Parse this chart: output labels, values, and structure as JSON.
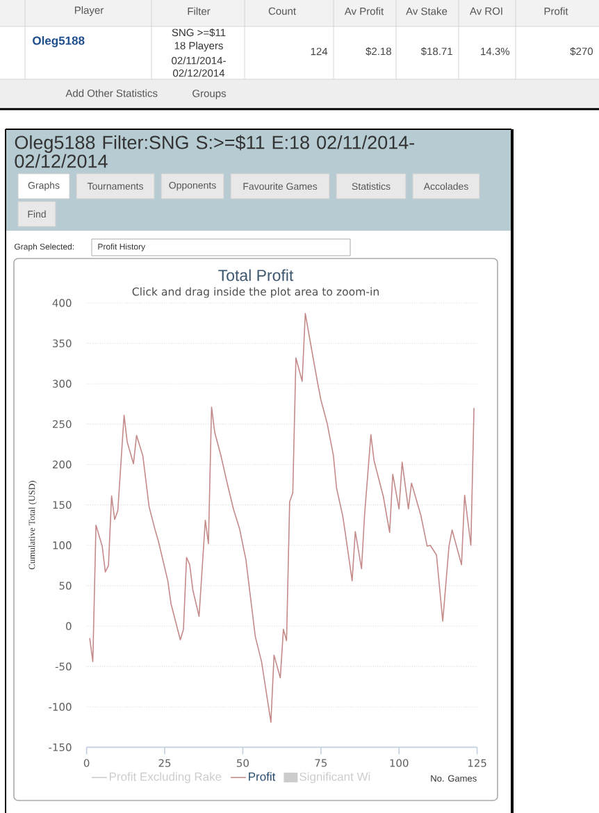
{
  "chart_data": {
    "type": "line",
    "title": "Total Profit",
    "subtitle": "Click and drag inside the plot area to zoom-in",
    "xlabel": "No. Games",
    "ylabel": "Cumulative Total (USD)",
    "xlim": [
      0,
      125
    ],
    "xticks": [
      0,
      25,
      50,
      75,
      100,
      125
    ],
    "ylim": [
      -150,
      400
    ],
    "yticks": [
      -150,
      -100,
      -50,
      0,
      50,
      100,
      150,
      200,
      250,
      300,
      350,
      400
    ],
    "grid": "y",
    "legend": "bottom",
    "series": [
      {
        "name": "Profit Excluding Rake",
        "color": "#cccccc"
      },
      {
        "name": "Profit",
        "color": "#c48a8a",
        "x": [
          1,
          2,
          3,
          5,
          6,
          7,
          8,
          9,
          10,
          12,
          13,
          15,
          16,
          18,
          20,
          22,
          23,
          26,
          27,
          30,
          31,
          32,
          33,
          34,
          36,
          38,
          39,
          40,
          41,
          43,
          45,
          47,
          49,
          51,
          54,
          56,
          59,
          60,
          62,
          63,
          64,
          65,
          66,
          67,
          69,
          70,
          72,
          74,
          75,
          77,
          79,
          80,
          82,
          83,
          85,
          86,
          88,
          89,
          91,
          92,
          95,
          97,
          98,
          100,
          101,
          103,
          104,
          107,
          109,
          110,
          112,
          114,
          116,
          117,
          120,
          121,
          123,
          124
        ],
        "values": [
          -15,
          -44,
          125,
          99,
          67,
          75,
          161,
          132,
          143,
          261,
          228,
          201,
          236,
          211,
          148,
          118,
          105,
          56,
          28,
          -17,
          -4,
          85,
          76,
          45,
          12,
          131,
          102,
          271,
          240,
          211,
          177,
          145,
          120,
          82,
          -13,
          -44,
          -119,
          -36,
          -64,
          -4,
          -18,
          154,
          165,
          332,
          303,
          387,
          343,
          300,
          280,
          251,
          211,
          171,
          136,
          110,
          56,
          117,
          71,
          139,
          237,
          205,
          160,
          116,
          188,
          145,
          203,
          145,
          177,
          137,
          99,
          100,
          88,
          6,
          99,
          119,
          76,
          162,
          100,
          270
        ]
      },
      {
        "name": "Significant Wi",
        "type": "area",
        "color": "#cccccc"
      }
    ],
    "annotations": [
      "Player",
      "Filter",
      "Count",
      "Av Profit",
      "Av Stake",
      "Av ROI",
      "Profit",
      "Oleg5188",
      "SNG >=$11",
      "18 Players",
      "02/11/2014-",
      "02/12/2014",
      "124",
      "$2.18",
      "$18.71",
      "14.3%",
      "$270",
      "Add Other Statistics",
      "Groups",
      "Oleg5188 Filter:SNG S:>=$11 E:18 02/11/2014-02/12/2014",
      "Graphs",
      "Tournaments",
      "Opponents",
      "Favourite Games",
      "Statistics",
      "Accolades",
      "Find",
      "Graph Selected:",
      "Profit History"
    ]
  }
}
